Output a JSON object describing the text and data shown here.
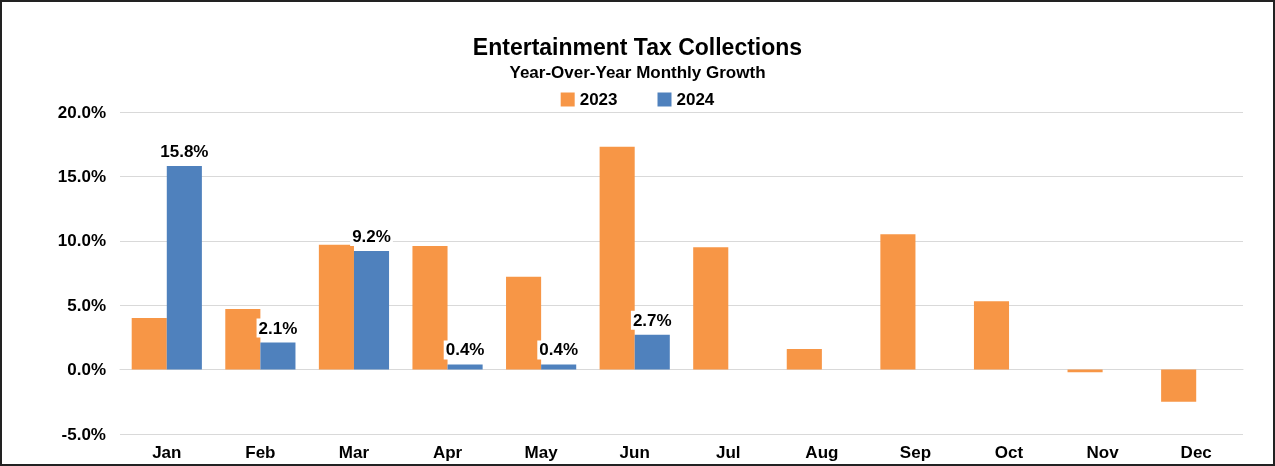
{
  "chart_data": {
    "type": "bar",
    "title": "Entertainment Tax Collections",
    "subtitle": "Year-Over-Year Monthly Growth",
    "categories": [
      "Jan",
      "Feb",
      "Mar",
      "Apr",
      "May",
      "Jun",
      "Jul",
      "Aug",
      "Sep",
      "Oct",
      "Nov",
      "Dec"
    ],
    "series": [
      {
        "name": "2023",
        "color": "#f79646",
        "values": [
          4.0,
          4.7,
          9.7,
          9.6,
          7.2,
          17.3,
          9.5,
          1.6,
          10.5,
          5.3,
          -0.2,
          -2.5
        ]
      },
      {
        "name": "2024",
        "color": "#4f81bd",
        "values": [
          15.8,
          2.1,
          9.2,
          0.4,
          0.4,
          2.7,
          null,
          null,
          null,
          null,
          null,
          null
        ],
        "value_labels": [
          "15.8%",
          "2.1%",
          "9.2%",
          "0.4%",
          "0.4%",
          "2.7%",
          null,
          null,
          null,
          null,
          null,
          null
        ]
      }
    ],
    "ylim": [
      -5,
      20
    ],
    "yticks": [
      {
        "value": -5,
        "label": "-5.0%"
      },
      {
        "value": 0,
        "label": "0.0%"
      },
      {
        "value": 5,
        "label": "5.0%"
      },
      {
        "value": 10,
        "label": "10.0%"
      },
      {
        "value": 15,
        "label": "15.0%"
      },
      {
        "value": 20,
        "label": "20.0%"
      }
    ],
    "grid": "y",
    "legend": "top"
  }
}
